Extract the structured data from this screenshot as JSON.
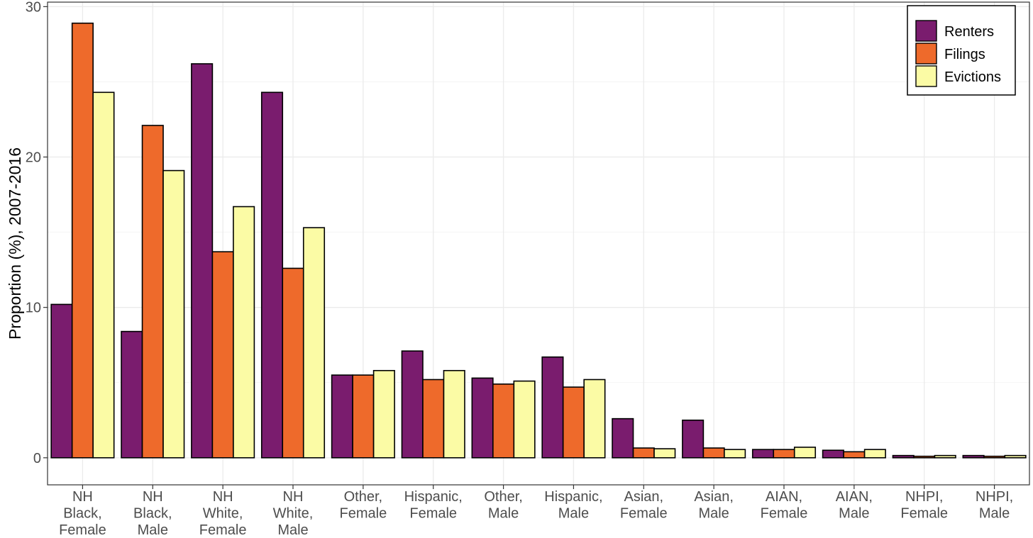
{
  "chart_data": {
    "type": "bar",
    "ylabel": "Proportion (%), 2007-2016",
    "xlabel": "",
    "ylim": [
      -1.8,
      30.3
    ],
    "yticks": [
      0,
      10,
      20,
      30
    ],
    "grid": true,
    "legend_position": "top-right",
    "categories": [
      [
        "NH",
        "Black,",
        "Female"
      ],
      [
        "NH",
        "Black,",
        "Male"
      ],
      [
        "NH",
        "White,",
        "Female"
      ],
      [
        "NH",
        "White,",
        "Male"
      ],
      [
        "Other,",
        "Female"
      ],
      [
        "Hispanic,",
        "Female"
      ],
      [
        "Other,",
        "Male"
      ],
      [
        "Hispanic,",
        "Male"
      ],
      [
        "Asian,",
        "Female"
      ],
      [
        "Asian,",
        "Male"
      ],
      [
        "AIAN,",
        "Female"
      ],
      [
        "AIAN,",
        "Male"
      ],
      [
        "NHPI,",
        "Female"
      ],
      [
        "NHPI,",
        "Male"
      ]
    ],
    "series": [
      {
        "name": "Renters",
        "color": "#7a1c6e",
        "values": [
          10.2,
          8.4,
          26.2,
          24.3,
          5.5,
          7.1,
          5.3,
          6.7,
          2.6,
          2.5,
          0.55,
          0.5,
          0.15,
          0.15
        ]
      },
      {
        "name": "Filings",
        "color": "#ee6a2b",
        "values": [
          28.9,
          22.1,
          13.7,
          12.6,
          5.5,
          5.2,
          4.9,
          4.7,
          0.65,
          0.65,
          0.55,
          0.4,
          0.1,
          0.1
        ]
      },
      {
        "name": "Evictions",
        "color": "#fbfba5",
        "values": [
          24.3,
          19.1,
          16.7,
          15.3,
          5.8,
          5.8,
          5.1,
          5.2,
          0.6,
          0.55,
          0.7,
          0.55,
          0.15,
          0.15
        ]
      }
    ]
  }
}
